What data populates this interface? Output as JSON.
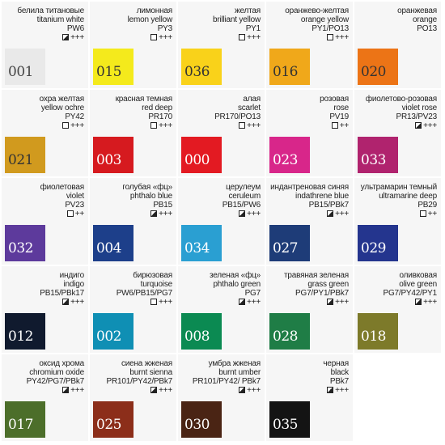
{
  "colors": [
    {
      "ru": "белила титановые",
      "en": "titanium white",
      "pigment": "PW6",
      "transparency": "half",
      "lightfastness": "+++",
      "code": "001",
      "swatch": "#e9e9e9",
      "text_color": "#444444"
    },
    {
      "ru": "лимонная",
      "en": "lemon yellow",
      "pigment": "PY3",
      "transparency": "empty",
      "lightfastness": "+++",
      "code": "015",
      "swatch": "#f4ea1c",
      "text_color": "#333333"
    },
    {
      "ru": "желтая",
      "en": "brilliant yellow",
      "pigment": "PY1",
      "transparency": "empty",
      "lightfastness": "+++",
      "code": "036",
      "swatch": "#f9d21a",
      "text_color": "#333333"
    },
    {
      "ru": "оранжево-желтая",
      "en": "orange yellow",
      "pigment": "PY1/PO13",
      "transparency": "empty",
      "lightfastness": "+++",
      "code": "016",
      "swatch": "#f0a81a",
      "text_color": "#333333"
    },
    {
      "ru": "оранжевая",
      "en": "orange",
      "pigment": "PO13",
      "transparency": "",
      "lightfastness": "",
      "code": "020",
      "swatch": "#ec7416",
      "text_color": "#333333"
    },
    {
      "ru": "охра желтая",
      "en": "yellow ochre",
      "pigment": "PY42",
      "transparency": "empty",
      "lightfastness": "+++",
      "code": "021",
      "swatch": "#d19a1e",
      "text_color": "#333333"
    },
    {
      "ru": "красная темная",
      "en": "red deep",
      "pigment": "PR170",
      "transparency": "empty",
      "lightfastness": "+++",
      "code": "003",
      "swatch": "#d61a1f",
      "text_color": "#ffffff"
    },
    {
      "ru": "алая",
      "en": "scarlet",
      "pigment": "PR170/PO13",
      "transparency": "empty",
      "lightfastness": "+++",
      "code": "000",
      "swatch": "#e31a22",
      "text_color": "#ffffff"
    },
    {
      "ru": "розовая",
      "en": "rose",
      "pigment": "PV19",
      "transparency": "empty",
      "lightfastness": "++",
      "code": "023",
      "swatch": "#d8268a",
      "text_color": "#ffffff"
    },
    {
      "ru": "фиолетово-розовая",
      "en": "violet rose",
      "pigment": "PR13/PV23",
      "transparency": "half",
      "lightfastness": "+++",
      "code": "033",
      "swatch": "#b0236e",
      "text_color": "#ffffff"
    },
    {
      "ru": "фиолетовая",
      "en": "violet",
      "pigment": "PV23",
      "transparency": "empty",
      "lightfastness": "++",
      "code": "032",
      "swatch": "#5d3a9c",
      "text_color": "#ffffff"
    },
    {
      "ru": "голубая «фц»",
      "en": "phthalo blue",
      "pigment": "PB15",
      "transparency": "half",
      "lightfastness": "+++",
      "code": "004",
      "swatch": "#1d3f8a",
      "text_color": "#ffffff"
    },
    {
      "ru": "церулеум",
      "en": "ceruleum",
      "pigment": "PB15/PW6",
      "transparency": "half",
      "lightfastness": "+++",
      "code": "034",
      "swatch": "#2a9fd2",
      "text_color": "#ffffff"
    },
    {
      "ru": "индантреновая синяя",
      "en": "indathrene blue",
      "pigment": "PB15/PBk7",
      "transparency": "half",
      "lightfastness": "+++",
      "code": "027",
      "swatch": "#1e3c78",
      "text_color": "#ffffff"
    },
    {
      "ru": "ультрамарин темный",
      "en": "ultramarine deep",
      "pigment": "PB29",
      "transparency": "empty",
      "lightfastness": "++",
      "code": "029",
      "swatch": "#24358e",
      "text_color": "#ffffff"
    },
    {
      "ru": "индиго",
      "en": "indigo",
      "pigment": "PB15/PBk17",
      "transparency": "half",
      "lightfastness": "+++",
      "code": "012",
      "swatch": "#101a2e",
      "text_color": "#ffffff"
    },
    {
      "ru": "бирюзовая",
      "en": "turquoise",
      "pigment": "PW6/PB15/PG7",
      "transparency": "empty",
      "lightfastness": "+++",
      "code": "002",
      "swatch": "#0f8fb4",
      "text_color": "#ffffff"
    },
    {
      "ru": "зеленая «фц»",
      "en": "phthalo green",
      "pigment": "PG7",
      "transparency": "half",
      "lightfastness": "+++",
      "code": "008",
      "swatch": "#0b8a52",
      "text_color": "#ffffff"
    },
    {
      "ru": "травяная зеленая",
      "en": "grass green",
      "pigment": "PG7/PY1/PBk7",
      "transparency": "half",
      "lightfastness": "+++",
      "code": "028",
      "swatch": "#1f7d46",
      "text_color": "#ffffff"
    },
    {
      "ru": "оливковая",
      "en": "olive green",
      "pigment": "PG7/PY42/PY1",
      "transparency": "half",
      "lightfastness": "+++",
      "code": "018",
      "swatch": "#7d7a2a",
      "text_color": "#ffffff"
    },
    {
      "ru": "оксид хрома",
      "en": "chromium oxide",
      "pigment": "PY42/PG7/PBk7",
      "transparency": "half",
      "lightfastness": "+++",
      "code": "017",
      "swatch": "#4c6e2a",
      "text_color": "#ffffff"
    },
    {
      "ru": "сиена жженая",
      "en": "burnt sienna",
      "pigment": "PR101/PY42/PBk7",
      "transparency": "half",
      "lightfastness": "+++",
      "code": "025",
      "swatch": "#8c2e1a",
      "text_color": "#ffffff"
    },
    {
      "ru": "умбра жженая",
      "en": "burnt umber",
      "pigment": "PR101/PY42/ PBk7",
      "transparency": "half",
      "lightfastness": "+++",
      "code": "030",
      "swatch": "#4a2414",
      "text_color": "#ffffff"
    },
    {
      "ru": "черная",
      "en": "black",
      "pigment": "PBk7",
      "transparency": "half",
      "lightfastness": "+++",
      "code": "035",
      "swatch": "#141414",
      "text_color": "#ffffff"
    }
  ]
}
